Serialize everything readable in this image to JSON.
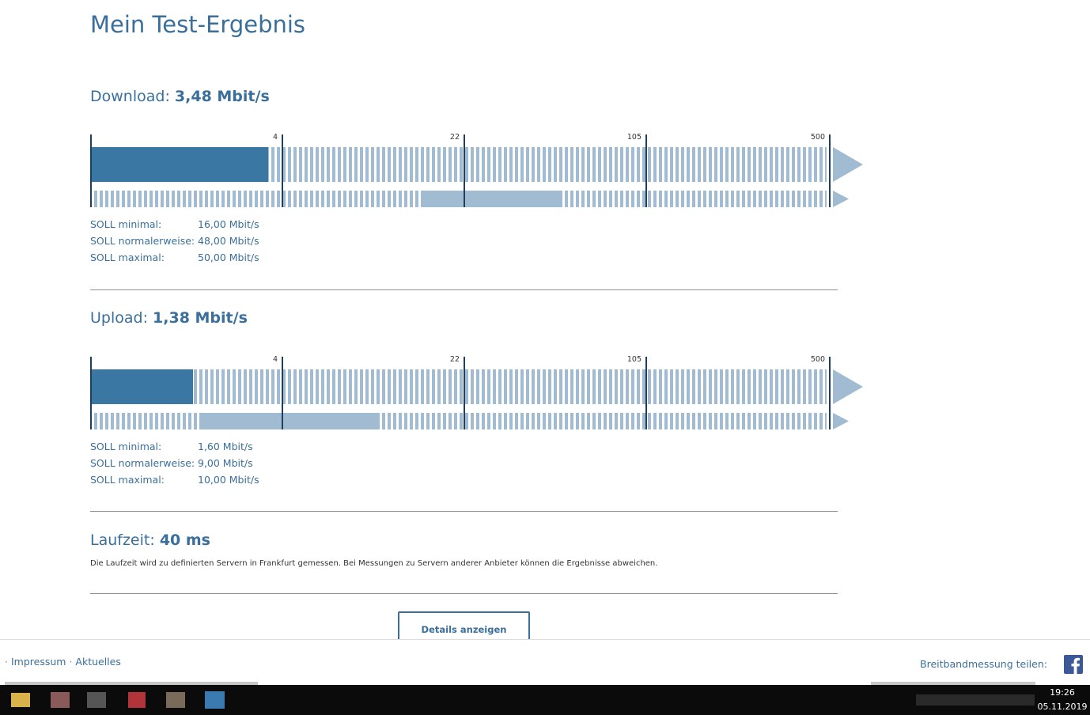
{
  "header": {
    "title": "Mein Test-Ergebnis"
  },
  "download": {
    "label": "Download:",
    "value": "3,48 Mbit/s",
    "scale": [
      "4",
      "22",
      "105",
      "500"
    ],
    "targets": [
      {
        "label": "SOLL minimal:",
        "value": "16,00 Mbit/s"
      },
      {
        "label": "SOLL normalerweise:",
        "value": "48,00 Mbit/s"
      },
      {
        "label": "SOLL maximal:",
        "value": "50,00 Mbit/s"
      }
    ]
  },
  "upload": {
    "label": "Upload:",
    "value": "1,38 Mbit/s",
    "scale": [
      "4",
      "22",
      "105",
      "500"
    ],
    "targets": [
      {
        "label": "SOLL minimal:",
        "value": "1,60 Mbit/s"
      },
      {
        "label": "SOLL normalerweise:",
        "value": "9,00 Mbit/s"
      },
      {
        "label": "SOLL maximal:",
        "value": "10,00 Mbit/s"
      }
    ]
  },
  "latency": {
    "label": "Laufzeit:",
    "value": "40 ms",
    "note": "Die Laufzeit wird zu definierten Servern in Frankfurt gemessen. Bei Messungen zu Servern anderer Anbieter können die Ergebnisse abweichen."
  },
  "button": "Details anzeigen",
  "footer": {
    "separator": "·",
    "links": [
      "Impressum",
      "Aktuelles"
    ],
    "share": "Breitbandmessung teilen:"
  },
  "taskbar": {
    "time": "19:26",
    "date": "05.11.2019"
  }
}
